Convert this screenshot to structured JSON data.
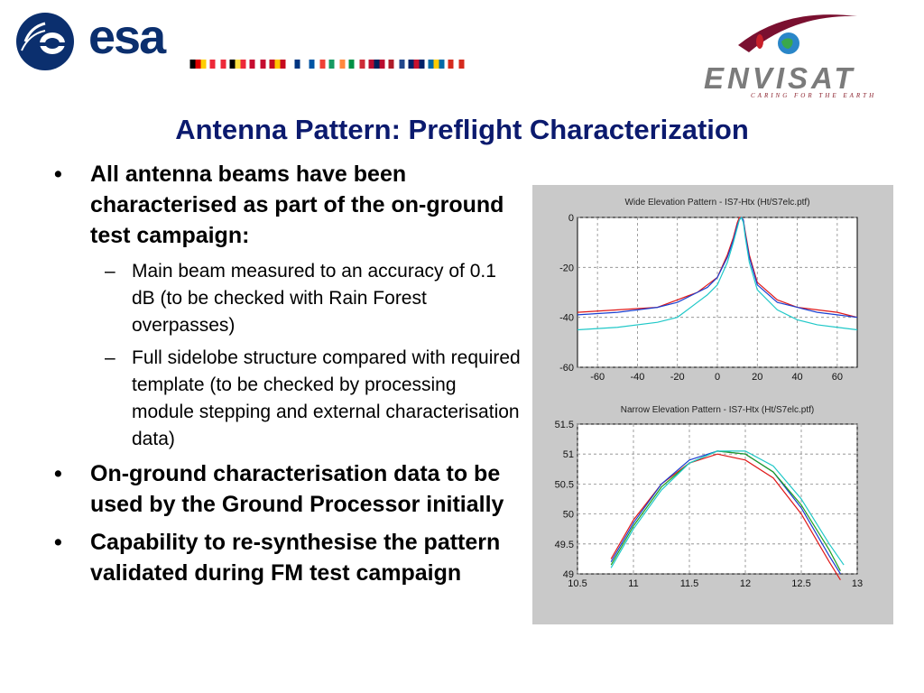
{
  "header": {
    "esa_word": "esa",
    "flags": [
      {
        "name": "germany",
        "colors": [
          "#000000",
          "#dd0000",
          "#ffce00"
        ]
      },
      {
        "name": "austria",
        "colors": [
          "#ed2939",
          "#ffffff",
          "#ed2939"
        ]
      },
      {
        "name": "belgium",
        "colors": [
          "#000000",
          "#fae042",
          "#ed2939"
        ]
      },
      {
        "name": "denmark",
        "colors": [
          "#c60c30",
          "#ffffff",
          "#c60c30"
        ]
      },
      {
        "name": "spain",
        "colors": [
          "#c60b1e",
          "#ffc400",
          "#c60b1e"
        ]
      },
      {
        "name": "finland",
        "colors": [
          "#ffffff",
          "#003580",
          "#ffffff"
        ]
      },
      {
        "name": "france",
        "colors": [
          "#0055a4",
          "#ffffff",
          "#ef4135"
        ]
      },
      {
        "name": "ireland",
        "colors": [
          "#169b62",
          "#ffffff",
          "#ff883e"
        ]
      },
      {
        "name": "italy",
        "colors": [
          "#009246",
          "#ffffff",
          "#ce2b37"
        ]
      },
      {
        "name": "norway",
        "colors": [
          "#ba0c2f",
          "#00205b",
          "#ba0c2f"
        ]
      },
      {
        "name": "netherlands",
        "colors": [
          "#ae1c28",
          "#ffffff",
          "#21468b"
        ]
      },
      {
        "name": "uk",
        "colors": [
          "#012169",
          "#c8102e",
          "#012169"
        ]
      },
      {
        "name": "sweden",
        "colors": [
          "#006aa7",
          "#fecc00",
          "#006aa7"
        ]
      },
      {
        "name": "switzerland",
        "colors": [
          "#d52b1e",
          "#ffffff",
          "#d52b1e"
        ]
      }
    ],
    "envisat_word": "ENVISAT",
    "envisat_tagline": "CARING FOR THE EARTH"
  },
  "slide": {
    "title": "Antenna Pattern: Preflight Characterization",
    "bullets": [
      {
        "text": "All antenna beams have been characterised as part of the on-ground test campaign:",
        "sub": [
          "Main beam measured to an accuracy of 0.1 dB (to be checked with Rain Forest overpasses)",
          "Full sidelobe structure compared with required template (to be checked by processing module stepping and external characterisation data)"
        ]
      },
      {
        "text": "On-ground characterisation data to be used by the Ground Processor initially",
        "sub": []
      },
      {
        "text": "Capability to re-synthesise the pattern validated during FM test campaign",
        "sub": []
      }
    ]
  },
  "chart_data": [
    {
      "type": "line",
      "title": "Wide Elevation Pattern - IS7-Htx (Ht/S7elc.ptf)",
      "xlim": [
        -70,
        70
      ],
      "ylim": [
        -60,
        0
      ],
      "xticks": [
        -60,
        -40,
        -20,
        0,
        20,
        40,
        60
      ],
      "yticks": [
        0,
        -20,
        -40,
        -60
      ],
      "grid": true,
      "series": [
        {
          "color": "#e01818",
          "x": [
            -70,
            -50,
            -30,
            -20,
            -10,
            -5,
            0,
            5,
            8,
            10,
            11,
            12,
            13,
            14,
            16,
            20,
            30,
            40,
            50,
            60,
            70
          ],
          "y": [
            -38,
            -37,
            -36,
            -33,
            -30,
            -27,
            -24,
            -15,
            -8,
            -2,
            0,
            0,
            -1,
            -6,
            -15,
            -26,
            -33,
            -36,
            -37,
            -38,
            -40
          ]
        },
        {
          "color": "#1a3fd0",
          "x": [
            -70,
            -50,
            -30,
            -20,
            -10,
            -5,
            0,
            5,
            8,
            10,
            11,
            12,
            13,
            14,
            16,
            20,
            30,
            40,
            50,
            60,
            70
          ],
          "y": [
            -39,
            -38,
            -36,
            -34,
            -30,
            -28,
            -24,
            -16,
            -9,
            -3,
            -1,
            0,
            -1,
            -7,
            -16,
            -27,
            -34,
            -36,
            -38,
            -39,
            -40
          ]
        },
        {
          "color": "#20c8c8",
          "x": [
            -70,
            -50,
            -30,
            -20,
            -10,
            -5,
            0,
            5,
            8,
            10,
            11,
            12,
            13,
            14,
            16,
            20,
            30,
            40,
            50,
            60,
            70
          ],
          "y": [
            -45,
            -44,
            -42,
            -40,
            -34,
            -31,
            -27,
            -18,
            -10,
            -4,
            -1,
            0,
            -2,
            -8,
            -18,
            -29,
            -37,
            -41,
            -43,
            -44,
            -45
          ]
        }
      ]
    },
    {
      "type": "line",
      "title": "Narrow Elevation Pattern - IS7-Htx (Ht/S7elc.ptf)",
      "xlim": [
        10.5,
        13
      ],
      "ylim": [
        49,
        51.5
      ],
      "xticks": [
        10.5,
        11,
        11.5,
        12,
        12.5,
        13
      ],
      "yticks": [
        51.5,
        51,
        50.5,
        50,
        49.5,
        49
      ],
      "xtick_labels": [
        "10.5",
        "11",
        "11.5",
        "12",
        "12.5",
        "13"
      ],
      "ytick_labels": [
        "51.5",
        "51",
        "50.5",
        "50",
        "49.5",
        "49"
      ],
      "grid": true,
      "series": [
        {
          "color": "#e01818",
          "x": [
            10.8,
            11,
            11.25,
            11.5,
            11.75,
            12,
            12.25,
            12.5,
            12.75,
            12.85
          ],
          "y": [
            49.25,
            49.9,
            50.5,
            50.85,
            51.0,
            50.9,
            50.6,
            50.0,
            49.2,
            48.9
          ]
        },
        {
          "color": "#1a3fd0",
          "x": [
            10.8,
            11,
            11.25,
            11.5,
            11.75,
            12,
            12.25,
            12.5,
            12.75,
            12.85
          ],
          "y": [
            49.2,
            49.85,
            50.5,
            50.9,
            51.05,
            51.0,
            50.7,
            50.1,
            49.3,
            49.0
          ]
        },
        {
          "color": "#20a020",
          "x": [
            10.8,
            11,
            11.25,
            11.5,
            11.75,
            12,
            12.25,
            12.5,
            12.75,
            12.85
          ],
          "y": [
            49.15,
            49.8,
            50.45,
            50.85,
            51.05,
            51.0,
            50.7,
            50.15,
            49.4,
            49.05
          ]
        },
        {
          "color": "#20c8c8",
          "x": [
            10.8,
            11,
            11.25,
            11.5,
            11.75,
            12,
            12.25,
            12.5,
            12.75,
            12.88
          ],
          "y": [
            49.1,
            49.75,
            50.4,
            50.85,
            51.05,
            51.05,
            50.8,
            50.25,
            49.5,
            49.15
          ]
        }
      ]
    }
  ]
}
